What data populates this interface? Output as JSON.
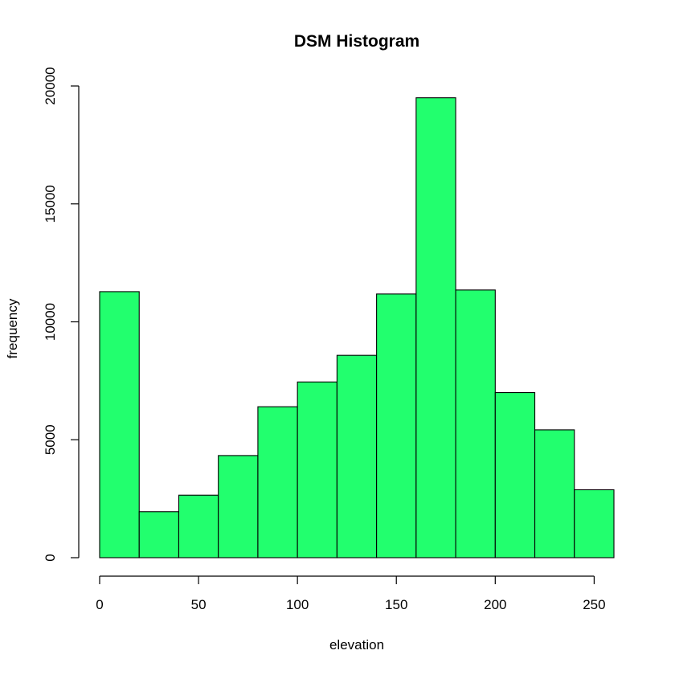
{
  "chart_data": {
    "type": "bar",
    "title": "DSM Histogram",
    "xlabel": "elevation",
    "ylabel": "frequency",
    "bar_color": "#22ff6e",
    "border_color": "#000000",
    "bins": [
      {
        "start": 0,
        "end": 20,
        "count": 11280
      },
      {
        "start": 20,
        "end": 40,
        "count": 1950
      },
      {
        "start": 40,
        "end": 60,
        "count": 2650
      },
      {
        "start": 60,
        "end": 80,
        "count": 4330
      },
      {
        "start": 80,
        "end": 100,
        "count": 6400
      },
      {
        "start": 100,
        "end": 120,
        "count": 7450
      },
      {
        "start": 120,
        "end": 140,
        "count": 8580
      },
      {
        "start": 140,
        "end": 160,
        "count": 11180
      },
      {
        "start": 160,
        "end": 180,
        "count": 19500
      },
      {
        "start": 180,
        "end": 200,
        "count": 11350
      },
      {
        "start": 200,
        "end": 220,
        "count": 7000
      },
      {
        "start": 220,
        "end": 240,
        "count": 5420
      },
      {
        "start": 240,
        "end": 260,
        "count": 2880
      }
    ],
    "xlim": [
      0,
      260
    ],
    "ylim": [
      0,
      20000
    ],
    "x_ticks": [
      0,
      50,
      100,
      150,
      200,
      250
    ],
    "x_tick_labels": [
      "0",
      "50",
      "100",
      "150",
      "200",
      "250"
    ],
    "y_ticks": [
      0,
      5000,
      10000,
      15000,
      20000
    ],
    "y_tick_labels": [
      "0",
      "5000",
      "10000",
      "15000",
      "20000"
    ],
    "x_axis_ticks_through": 250,
    "grid": false
  }
}
